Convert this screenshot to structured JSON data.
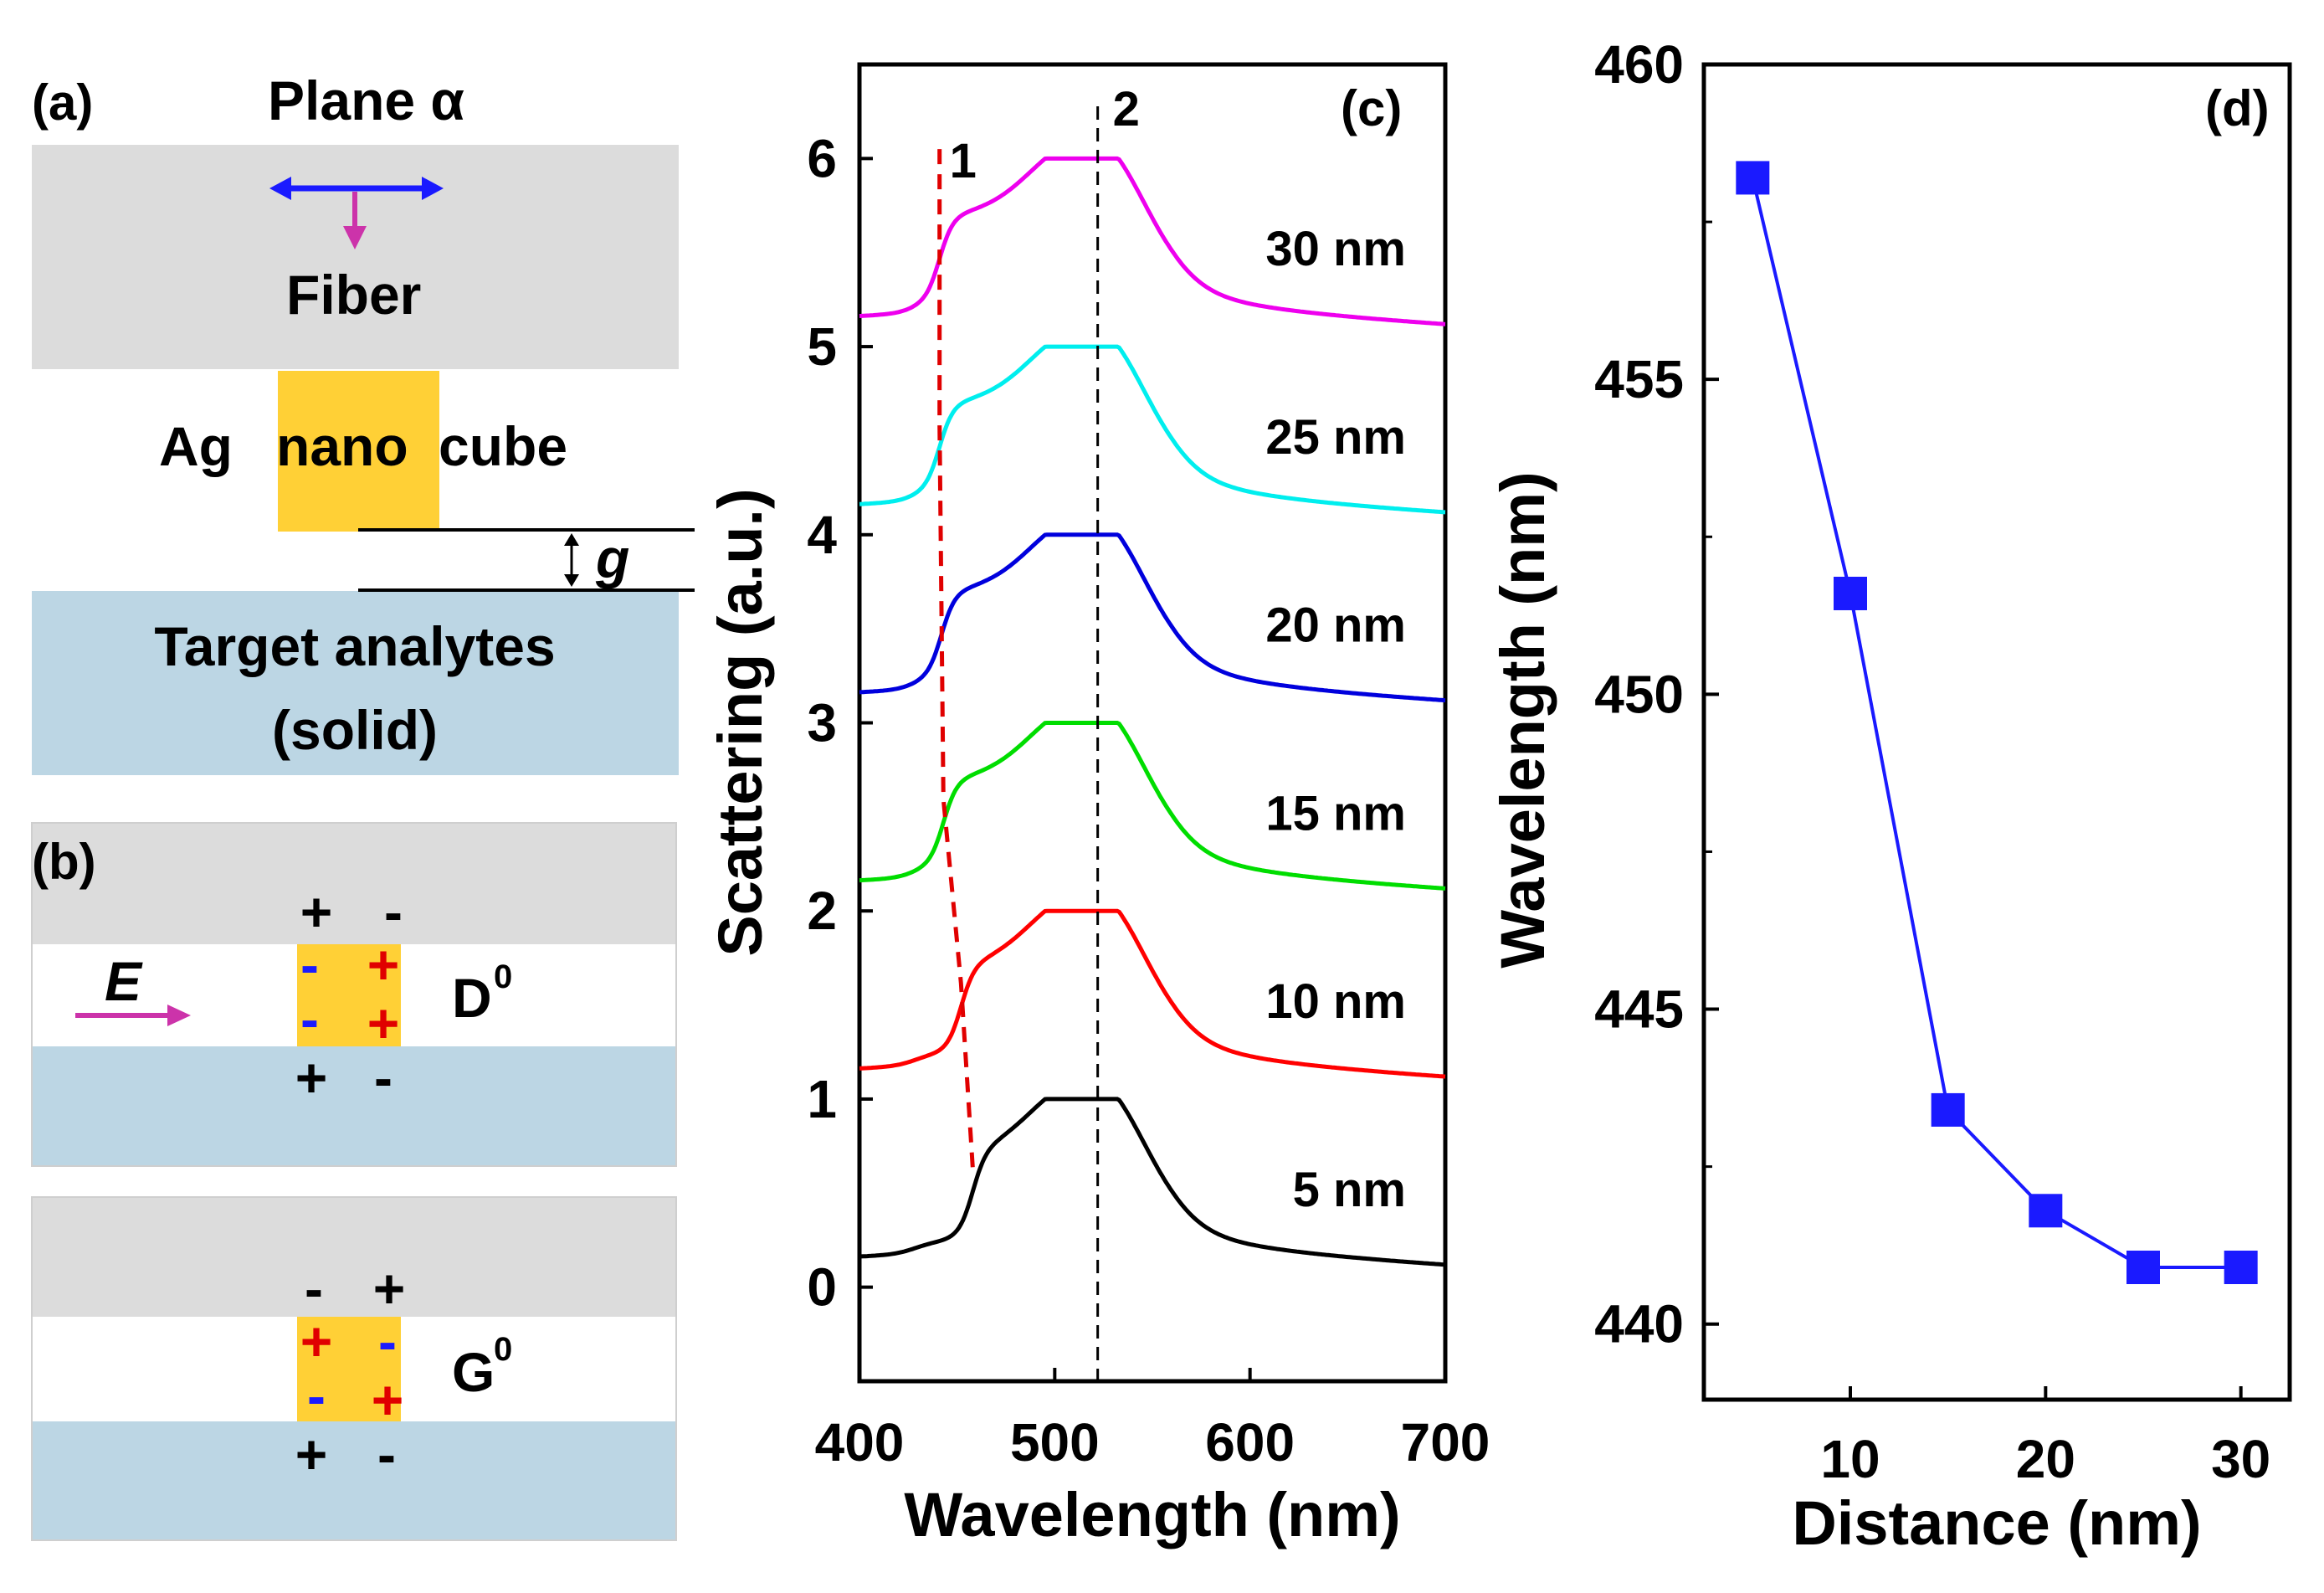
{
  "panel_a": {
    "letter": "(a)",
    "plane_label": "Plane α",
    "fiber_label": "Fiber",
    "ag_label": "Ag",
    "nano_label": "nano",
    "cube_label": "cube",
    "gap_label": "g",
    "analyte_line1": "Target analytes",
    "analyte_line2": "(solid)"
  },
  "panel_b": {
    "letter": "(b)",
    "e_label": "E",
    "d_mode": "D",
    "d_sup": "0",
    "g_mode": "G",
    "g_sup": "0",
    "plus": "+",
    "minus": "-"
  },
  "colors": {
    "gray_layer": "#dcdcdc",
    "blue_layer": "#bcd6e4",
    "cube": "#ffd036",
    "arrow_blue": "#1a1aff",
    "arrow_magenta": "#cc33aa",
    "plus_red": "#e00000",
    "minus_blue": "#1a1aff",
    "marker": "#1a1aff",
    "mode1_dash": "#e00000"
  },
  "chart_data": [
    {
      "panel": "(c)",
      "type": "line",
      "xlabel": "Wavelength (nm)",
      "ylabel": "Scattering (a.u.)",
      "xlim": [
        400,
        700
      ],
      "ylim": [
        -0.5,
        6.5
      ],
      "xticks": [
        "400",
        "500",
        "600",
        "700"
      ],
      "yticks": [
        "0",
        "1",
        "2",
        "3",
        "4",
        "5",
        "6"
      ],
      "mode_labels": {
        "mode1": "1",
        "mode2": "2"
      },
      "mode2_wavelength": 522,
      "series": [
        {
          "name": "5 nm",
          "color": "#000000",
          "offset": 0,
          "mode1_wavelength": 458
        },
        {
          "name": "10 nm",
          "color": "#ff0000",
          "offset": 1,
          "mode1_wavelength": 452
        },
        {
          "name": "15 nm",
          "color": "#00dd00",
          "offset": 2,
          "mode1_wavelength": 443
        },
        {
          "name": "20 nm",
          "color": "#0000dd",
          "offset": 3,
          "mode1_wavelength": 442
        },
        {
          "name": "25 nm",
          "color": "#00eeee",
          "offset": 4,
          "mode1_wavelength": 441
        },
        {
          "name": "30 nm",
          "color": "#ee00ee",
          "offset": 5,
          "mode1_wavelength": 441
        }
      ]
    },
    {
      "panel": "(d)",
      "type": "scatter",
      "xlabel": "Distance (nm)",
      "ylabel": "Wavelength (nm)",
      "xlim": [
        2.5,
        32.5
      ],
      "ylim": [
        438.8,
        460
      ],
      "xticks": [
        "10",
        "20",
        "30"
      ],
      "yticks": [
        "440",
        "445",
        "450",
        "455",
        "460"
      ],
      "x": [
        5,
        10,
        15,
        20,
        25,
        30
      ],
      "y": [
        458.2,
        451.6,
        443.4,
        441.8,
        440.9,
        440.9
      ]
    }
  ]
}
